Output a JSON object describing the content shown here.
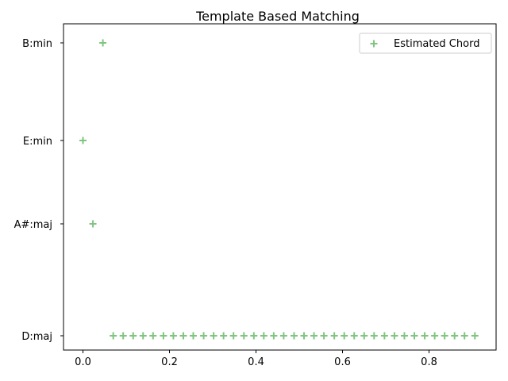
{
  "chart_data": {
    "type": "scatter",
    "title": "Template Based Matching",
    "xlabel": "",
    "ylabel": "",
    "xlim": [
      -0.045,
      0.955
    ],
    "x_ticks": [
      0.0,
      0.2,
      0.4,
      0.6,
      0.8
    ],
    "x_tick_labels": [
      "0.0",
      "0.2",
      "0.4",
      "0.6",
      "0.8"
    ],
    "y_categories": [
      "D:maj",
      "A#:maj",
      "E:min",
      "B:min"
    ],
    "marker": "+",
    "grid": false,
    "legend_position": "top-right",
    "series": [
      {
        "name": "Estimated Chord",
        "color": "#7fc47f",
        "points": [
          {
            "x": 0.0,
            "y": "E:min"
          },
          {
            "x": 0.023,
            "y": "A#:maj"
          },
          {
            "x": 0.046,
            "y": "B:min"
          },
          {
            "x": 0.07,
            "y": "D:maj"
          },
          {
            "x": 0.093,
            "y": "D:maj"
          },
          {
            "x": 0.116,
            "y": "D:maj"
          },
          {
            "x": 0.139,
            "y": "D:maj"
          },
          {
            "x": 0.162,
            "y": "D:maj"
          },
          {
            "x": 0.186,
            "y": "D:maj"
          },
          {
            "x": 0.209,
            "y": "D:maj"
          },
          {
            "x": 0.232,
            "y": "D:maj"
          },
          {
            "x": 0.255,
            "y": "D:maj"
          },
          {
            "x": 0.279,
            "y": "D:maj"
          },
          {
            "x": 0.302,
            "y": "D:maj"
          },
          {
            "x": 0.325,
            "y": "D:maj"
          },
          {
            "x": 0.348,
            "y": "D:maj"
          },
          {
            "x": 0.372,
            "y": "D:maj"
          },
          {
            "x": 0.395,
            "y": "D:maj"
          },
          {
            "x": 0.418,
            "y": "D:maj"
          },
          {
            "x": 0.441,
            "y": "D:maj"
          },
          {
            "x": 0.464,
            "y": "D:maj"
          },
          {
            "x": 0.488,
            "y": "D:maj"
          },
          {
            "x": 0.511,
            "y": "D:maj"
          },
          {
            "x": 0.534,
            "y": "D:maj"
          },
          {
            "x": 0.557,
            "y": "D:maj"
          },
          {
            "x": 0.581,
            "y": "D:maj"
          },
          {
            "x": 0.604,
            "y": "D:maj"
          },
          {
            "x": 0.627,
            "y": "D:maj"
          },
          {
            "x": 0.65,
            "y": "D:maj"
          },
          {
            "x": 0.673,
            "y": "D:maj"
          },
          {
            "x": 0.697,
            "y": "D:maj"
          },
          {
            "x": 0.72,
            "y": "D:maj"
          },
          {
            "x": 0.743,
            "y": "D:maj"
          },
          {
            "x": 0.766,
            "y": "D:maj"
          },
          {
            "x": 0.79,
            "y": "D:maj"
          },
          {
            "x": 0.813,
            "y": "D:maj"
          },
          {
            "x": 0.836,
            "y": "D:maj"
          },
          {
            "x": 0.859,
            "y": "D:maj"
          },
          {
            "x": 0.882,
            "y": "D:maj"
          },
          {
            "x": 0.906,
            "y": "D:maj"
          }
        ]
      }
    ]
  }
}
